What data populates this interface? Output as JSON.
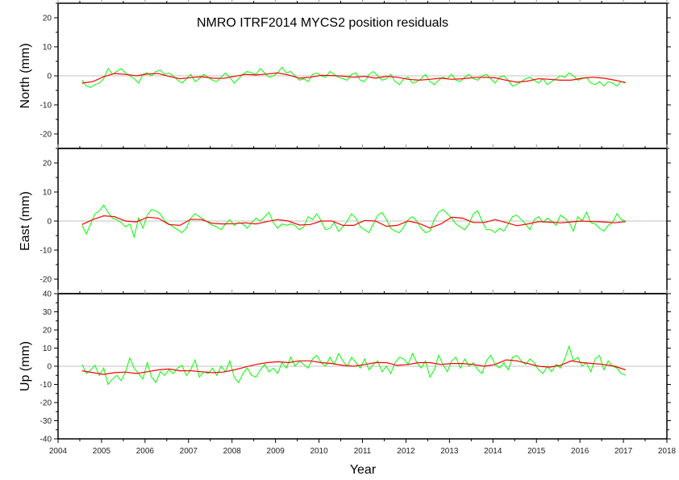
{
  "chart_data": {
    "type": "line",
    "title": "NMRO  ITRF2014 MYCS2 position residuals",
    "xlabel": "Year",
    "xlim": [
      2004,
      2018
    ],
    "x_ticks": [
      "2004",
      "2005",
      "2006",
      "2007",
      "2008",
      "2009",
      "2010",
      "2011",
      "2012",
      "2013",
      "2014",
      "2015",
      "2016",
      "2017",
      "2018"
    ],
    "x_start": 2004.55,
    "x_end": 2017.05,
    "colors": {
      "residuals": "#00ff00",
      "model": "#ff0000",
      "zero_line": "#c0c0c0",
      "axis": "#000000"
    },
    "panels": [
      {
        "name": "north",
        "ylabel": "North (mm)",
        "ylim": [
          -25,
          25
        ],
        "y_ticks": [
          "20",
          "10",
          "0",
          "-10",
          "-20"
        ],
        "residuals": [
          -1.5,
          -3.5,
          -4.0,
          -3.0,
          -2.5,
          -1.0,
          2.5,
          0.5,
          1.5,
          2.5,
          1.0,
          0.0,
          -1.0,
          -2.5,
          0.5,
          1.0,
          0.0,
          1.5,
          2.0,
          0.5,
          1.0,
          0.0,
          -1.5,
          -2.5,
          -1.0,
          0.5,
          -2.0,
          -1.0,
          0.5,
          -0.5,
          -1.5,
          -2.0,
          -0.5,
          1.0,
          -0.5,
          -2.5,
          -1.0,
          0.5,
          1.5,
          1.0,
          0.5,
          2.5,
          1.0,
          -0.5,
          0.0,
          1.0,
          3.0,
          1.0,
          1.5,
          0.0,
          -1.5,
          -1.0,
          -2.0,
          0.5,
          1.0,
          0.0,
          -0.5,
          1.5,
          0.5,
          -0.5,
          -1.0,
          -1.5,
          0.5,
          1.0,
          -1.5,
          -2.0,
          0.5,
          1.5,
          0.0,
          -1.5,
          -1.0,
          0.5,
          -2.0,
          -3.0,
          -1.0,
          -0.5,
          -2.5,
          -2.0,
          -1.0,
          0.5,
          -2.0,
          -3.0,
          -1.5,
          -0.5,
          -1.0,
          0.5,
          -1.5,
          -2.0,
          -0.5,
          0.5,
          -1.0,
          -1.5,
          0.0,
          0.5,
          -1.0,
          -2.5,
          -0.5,
          0.0,
          -1.5,
          -3.5,
          -3.0,
          -2.0,
          -1.0,
          -0.5,
          -1.5,
          -2.5,
          -1.0,
          -3.0,
          -2.0,
          -1.0,
          0.0,
          -0.5,
          1.0,
          0.0,
          -1.5,
          -1.0,
          -0.5,
          -2.5,
          -3.0,
          -2.0,
          -3.5,
          -2.0,
          -2.5,
          -3.5,
          -2.0,
          -2.5
        ],
        "model": [
          -2.5,
          -2.0,
          -0.3,
          0.8,
          0.5,
          0.0,
          0.6,
          0.8,
          -0.2,
          -1.0,
          -0.6,
          -0.3,
          -0.8,
          -0.9,
          -0.2,
          0.5,
          0.3,
          0.6,
          1.0,
          0.3,
          -0.8,
          -0.5,
          0.2,
          0.1,
          -0.1,
          -0.5,
          -0.2,
          -0.8,
          -0.2,
          -0.5,
          -1.2,
          -1.5,
          -1.2,
          -0.8,
          -1.2,
          -1.0,
          -0.6,
          -0.5,
          -0.7,
          -1.5,
          -2.2,
          -1.8,
          -1.0,
          -1.2,
          -1.5,
          -1.5,
          -0.8,
          -0.5,
          -0.8,
          -1.5,
          -2.3
        ]
      },
      {
        "name": "east",
        "ylabel": "East (mm)",
        "ylim": [
          -25,
          25
        ],
        "y_ticks": [
          "20",
          "10",
          "0",
          "-10",
          "-20"
        ],
        "residuals": [
          -1.5,
          -4.5,
          -1.0,
          2.5,
          3.5,
          5.5,
          3.0,
          1.0,
          0.5,
          -0.5,
          -2.0,
          -1.0,
          -5.5,
          1.0,
          -2.5,
          2.0,
          4.0,
          3.5,
          2.5,
          0.0,
          -1.0,
          -2.0,
          -3.0,
          -4.0,
          -2.5,
          1.0,
          2.5,
          1.5,
          0.5,
          -0.5,
          -1.5,
          -2.0,
          -3.0,
          -1.0,
          0.5,
          -1.5,
          -0.5,
          -1.0,
          -2.5,
          -0.5,
          1.0,
          0.0,
          1.5,
          3.0,
          -0.5,
          -2.5,
          -1.0,
          -1.5,
          -1.0,
          -1.5,
          -3.0,
          -2.0,
          1.5,
          0.5,
          2.5,
          0.0,
          -3.0,
          -2.5,
          -0.5,
          -3.5,
          -2.0,
          0.0,
          2.5,
          1.0,
          -2.0,
          -3.0,
          -4.0,
          -1.0,
          2.0,
          3.0,
          0.5,
          -2.5,
          -3.5,
          -4.0,
          -2.0,
          0.5,
          1.5,
          0.0,
          -2.5,
          -4.0,
          -3.5,
          0.5,
          3.0,
          4.0,
          2.5,
          1.0,
          -1.0,
          -2.0,
          -3.0,
          -1.0,
          2.5,
          3.5,
          0.0,
          -3.0,
          -3.0,
          -4.0,
          -2.5,
          -3.5,
          -1.0,
          1.5,
          2.0,
          0.5,
          -1.0,
          -3.0,
          0.5,
          1.5,
          -0.5,
          1.0,
          0.0,
          -1.5,
          2.0,
          1.0,
          -0.5,
          -3.5,
          1.5,
          0.0,
          3.0,
          -0.5,
          -1.0,
          -2.5,
          -3.5,
          -1.5,
          -0.5,
          2.5,
          0.5,
          0.0
        ],
        "model": [
          -1.2,
          0.5,
          1.8,
          1.5,
          0.0,
          -0.3,
          1.3,
          1.0,
          -1.2,
          -1.5,
          0.6,
          0.5,
          -0.8,
          -1.0,
          -0.9,
          -0.6,
          -1.0,
          -0.2,
          0.5,
          0.0,
          -1.4,
          -1.2,
          0.0,
          0.0,
          -1.5,
          -1.5,
          0.2,
          0.0,
          -1.8,
          -1.5,
          0.0,
          -0.8,
          -2.4,
          -1.0,
          1.3,
          1.0,
          -0.5,
          -0.5,
          0.5,
          -0.5,
          -1.6,
          -1.0,
          -0.2,
          -0.4,
          -0.6,
          -0.3,
          0.0,
          -0.2,
          -0.3,
          -0.6,
          -0.2
        ]
      },
      {
        "name": "up",
        "ylabel": "Up (mm)",
        "ylim": [
          -40,
          40
        ],
        "y_ticks": [
          "40",
          "30",
          "20",
          "10",
          "0",
          "-10",
          "-20",
          "-30",
          "-40"
        ],
        "residuals": [
          1.0,
          -4.0,
          -2.0,
          0.5,
          -5.0,
          -1.0,
          -10.0,
          -7.0,
          -5.0,
          -8.0,
          -3.0,
          4.5,
          -1.0,
          -4.0,
          -7.0,
          2.0,
          -6.0,
          -9.0,
          -3.0,
          -5.0,
          -2.0,
          -4.0,
          -1.0,
          0.5,
          -5.0,
          -2.0,
          3.5,
          -6.0,
          -3.0,
          -4.0,
          -1.0,
          -5.0,
          0.0,
          -3.0,
          3.0,
          -6.0,
          -9.0,
          -4.0,
          -1.0,
          -5.0,
          -6.0,
          -2.0,
          1.0,
          -3.0,
          -1.0,
          -4.0,
          2.0,
          -1.0,
          5.0,
          0.0,
          3.0,
          1.0,
          -1.0,
          4.0,
          6.0,
          2.0,
          0.0,
          5.0,
          1.0,
          7.0,
          3.0,
          0.0,
          5.0,
          2.0,
          -1.0,
          4.0,
          -2.0,
          1.0,
          3.0,
          -3.0,
          0.0,
          -4.0,
          2.0,
          5.0,
          4.0,
          1.0,
          7.0,
          2.0,
          -1.0,
          3.0,
          -6.0,
          -2.0,
          6.0,
          1.0,
          -3.0,
          3.0,
          5.0,
          -1.0,
          4.0,
          0.0,
          2.0,
          -2.0,
          -4.0,
          3.0,
          6.0,
          1.0,
          -1.0,
          2.0,
          -2.0,
          5.0,
          6.0,
          3.0,
          1.0,
          4.0,
          2.0,
          -2.0,
          -4.0,
          0.0,
          -3.0,
          1.0,
          -1.0,
          4.0,
          11.0,
          3.0,
          5.0,
          0.0,
          2.0,
          -3.0,
          4.0,
          6.0,
          -2.0,
          3.0,
          0.0,
          -1.0,
          -4.0,
          -5.0
        ],
        "model": [
          -2.5,
          -3.5,
          -4.5,
          -3.5,
          -3.2,
          -4.0,
          -3.0,
          -2.0,
          -1.5,
          -2.5,
          -2.5,
          -3.0,
          -3.5,
          -3.2,
          -2.0,
          -0.5,
          1.0,
          2.0,
          2.5,
          2.0,
          3.0,
          3.0,
          2.0,
          1.5,
          0.5,
          0.0,
          1.0,
          2.0,
          2.0,
          0.5,
          1.0,
          2.0,
          2.0,
          1.0,
          1.5,
          1.5,
          1.0,
          0.0,
          1.0,
          3.5,
          3.0,
          1.5,
          0.0,
          -0.5,
          0.5,
          3.0,
          2.0,
          1.5,
          1.0,
          0.0,
          -2.0
        ]
      }
    ]
  }
}
